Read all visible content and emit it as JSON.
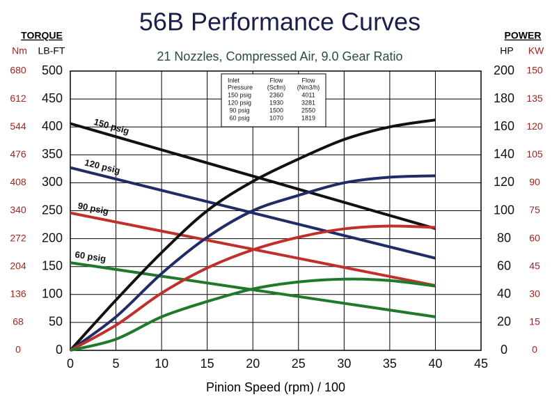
{
  "chart_data": {
    "type": "line",
    "title": "56B Performance Curves",
    "subtitle": "21 Nozzles, Compressed Air, 9.0 Gear Ratio",
    "xlabel": "Pinion Speed (rpm) / 100",
    "left_axis_title": "TORQUE",
    "left_units": [
      "Nm",
      "LB-FT"
    ],
    "right_axis_title": "POWER",
    "right_units": [
      "HP",
      "KW"
    ],
    "xlim": [
      0,
      45
    ],
    "xticks": [
      0,
      5,
      10,
      15,
      20,
      25,
      30,
      35,
      40,
      45
    ],
    "ylim": [
      0,
      500
    ],
    "yticks": [
      0,
      50,
      100,
      150,
      200,
      250,
      300,
      350,
      400,
      450,
      500
    ],
    "y2lim": [
      0,
      200
    ],
    "y2ticks": [
      0,
      20,
      40,
      60,
      80,
      100,
      120,
      140,
      160,
      180,
      200
    ],
    "nm_lim": [
      0,
      680
    ],
    "nm_ticks": [
      0,
      68,
      136,
      204,
      272,
      340,
      408,
      476,
      544,
      612,
      680
    ],
    "kw_lim": [
      0,
      150
    ],
    "kw_ticks": [
      0,
      15,
      30,
      45,
      60,
      75,
      90,
      105,
      120,
      135,
      150
    ],
    "grid": true,
    "series": [
      {
        "name": "150 psig",
        "color": "#111111",
        "x": [
          0,
          40
        ],
        "values": [
          406,
          218
        ]
      },
      {
        "name": "120 psig",
        "color": "#1f2c68",
        "x": [
          0,
          40
        ],
        "values": [
          327,
          165
        ]
      },
      {
        "name": "90 psig",
        "color": "#c0302a",
        "x": [
          0,
          40
        ],
        "values": [
          246,
          116
        ]
      },
      {
        "name": "60 psig",
        "color": "#1e7a2a",
        "x": [
          0,
          40
        ],
        "values": [
          157,
          60
        ]
      },
      {
        "color": "#111111",
        "axis": "y2",
        "x": [
          0,
          5,
          10,
          15,
          20,
          25,
          30,
          35,
          40
        ],
        "values": [
          0,
          36,
          70,
          100,
          121,
          137,
          151,
          160,
          165
        ]
      },
      {
        "color": "#1f2c68",
        "axis": "y2",
        "x": [
          0,
          5,
          10,
          15,
          20,
          25,
          30,
          35,
          40
        ],
        "values": [
          0,
          24,
          55,
          81,
          100,
          111,
          120,
          124,
          125
        ]
      },
      {
        "color": "#c0302a",
        "axis": "y2",
        "x": [
          0,
          5,
          10,
          15,
          20,
          25,
          30,
          35,
          40
        ],
        "values": [
          0,
          18,
          41,
          59,
          72,
          81,
          87,
          89,
          88
        ]
      },
      {
        "color": "#1e7a2a",
        "axis": "y2",
        "x": [
          0,
          5,
          10,
          15,
          20,
          25,
          30,
          35,
          40
        ],
        "values": [
          0,
          8,
          24,
          35,
          44,
          49,
          51,
          50,
          46
        ]
      }
    ],
    "table": {
      "header": [
        [
          "Inlet",
          "Pressure"
        ],
        [
          "Flow",
          "(Scfm)"
        ],
        [
          "Flow",
          "(Nm3/h)"
        ]
      ],
      "rows": [
        [
          "150 psig",
          "2360",
          "4011"
        ],
        [
          "120 psig",
          "1930",
          "3281"
        ],
        [
          "90 psig",
          "1500",
          "2550"
        ],
        [
          "60 psig",
          "1070",
          "1819"
        ]
      ]
    }
  }
}
